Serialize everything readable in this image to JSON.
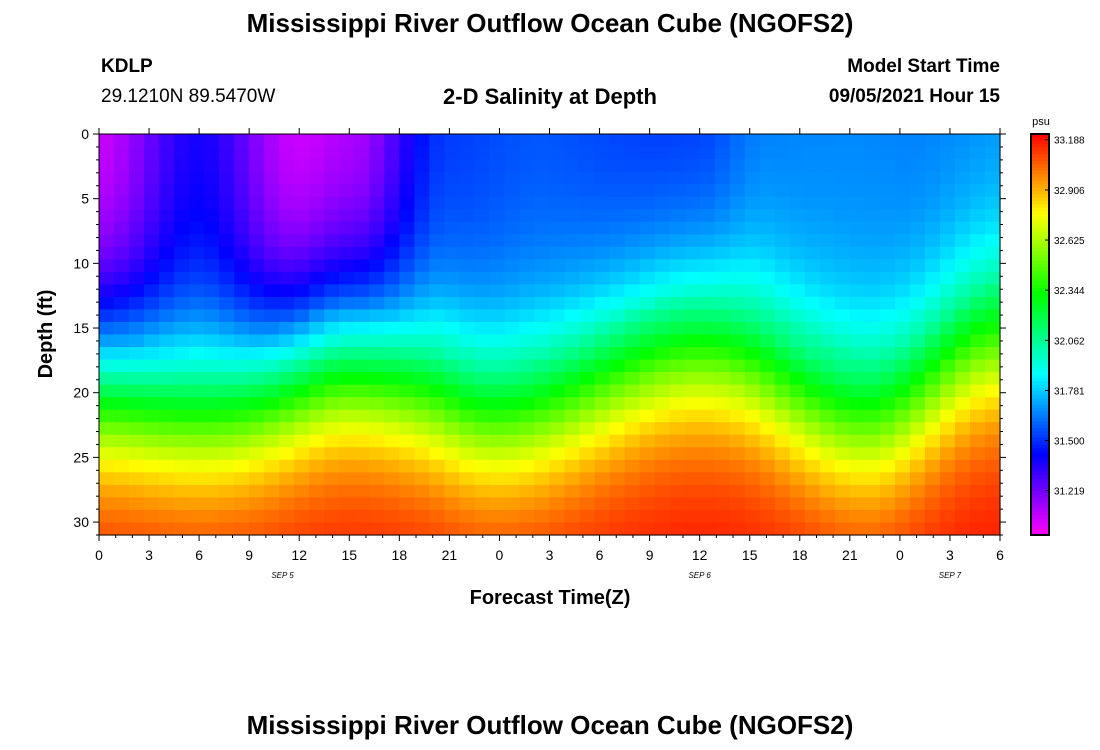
{
  "header": {
    "title": "Mississippi River Outflow Ocean Cube (NGOFS2)",
    "station_id": "KDLP",
    "coordinates": "29.1210N  89.5470W",
    "model_start_label": "Model Start Time",
    "model_start_value": "09/05/2021 Hour 15",
    "footer_title": "Mississippi River Outflow Ocean Cube (NGOFS2)"
  },
  "chart_data": {
    "type": "heatmap",
    "title": "2-D Salinity at Depth",
    "xlabel": "Forecast Time(Z)",
    "ylabel": "Depth (ft)",
    "x_range_hours": [
      0,
      54
    ],
    "xtick_labels": [
      "0",
      "3",
      "6",
      "9",
      "12",
      "15",
      "18",
      "21",
      "0",
      "3",
      "6",
      "9",
      "12",
      "15",
      "18",
      "21",
      "0",
      "3",
      "6"
    ],
    "date_labels": [
      {
        "label": "SEP 5",
        "hour": 11
      },
      {
        "label": "SEP 6",
        "hour": 36
      },
      {
        "label": "SEP 7",
        "hour": 51
      }
    ],
    "ylim": [
      0,
      31
    ],
    "ytick_values": [
      0,
      5,
      10,
      15,
      20,
      25,
      30
    ],
    "colorbar": {
      "unit": "psu",
      "min": 30.97,
      "max": 33.22,
      "ticks": [
        "33.188",
        "32.906",
        "32.625",
        "32.344",
        "32.062",
        "31.781",
        "31.500",
        "31.219"
      ]
    },
    "surface_salinity_by_hour": [
      {
        "hour": 0,
        "value": 31.05
      },
      {
        "hour": 6,
        "value": 31.35
      },
      {
        "hour": 12,
        "value": 31.05
      },
      {
        "hour": 15,
        "value": 31.1
      },
      {
        "hour": 21,
        "value": 31.5
      },
      {
        "hour": 27,
        "value": 31.55
      },
      {
        "hour": 36,
        "value": 31.52
      },
      {
        "hour": 40,
        "value": 31.62
      },
      {
        "hour": 48,
        "value": 31.65
      },
      {
        "hour": 54,
        "value": 31.68
      }
    ],
    "halocline_midpoint_depth_ft_by_hour": [
      {
        "hour": 0,
        "value": 19.5
      },
      {
        "hour": 6,
        "value": 21
      },
      {
        "hour": 15,
        "value": 17.5
      },
      {
        "hour": 24,
        "value": 21.5
      },
      {
        "hour": 36,
        "value": 16.5
      },
      {
        "hour": 46,
        "value": 22
      },
      {
        "hour": 54,
        "value": 16
      }
    ],
    "bottom_salinity": 33.2
  }
}
